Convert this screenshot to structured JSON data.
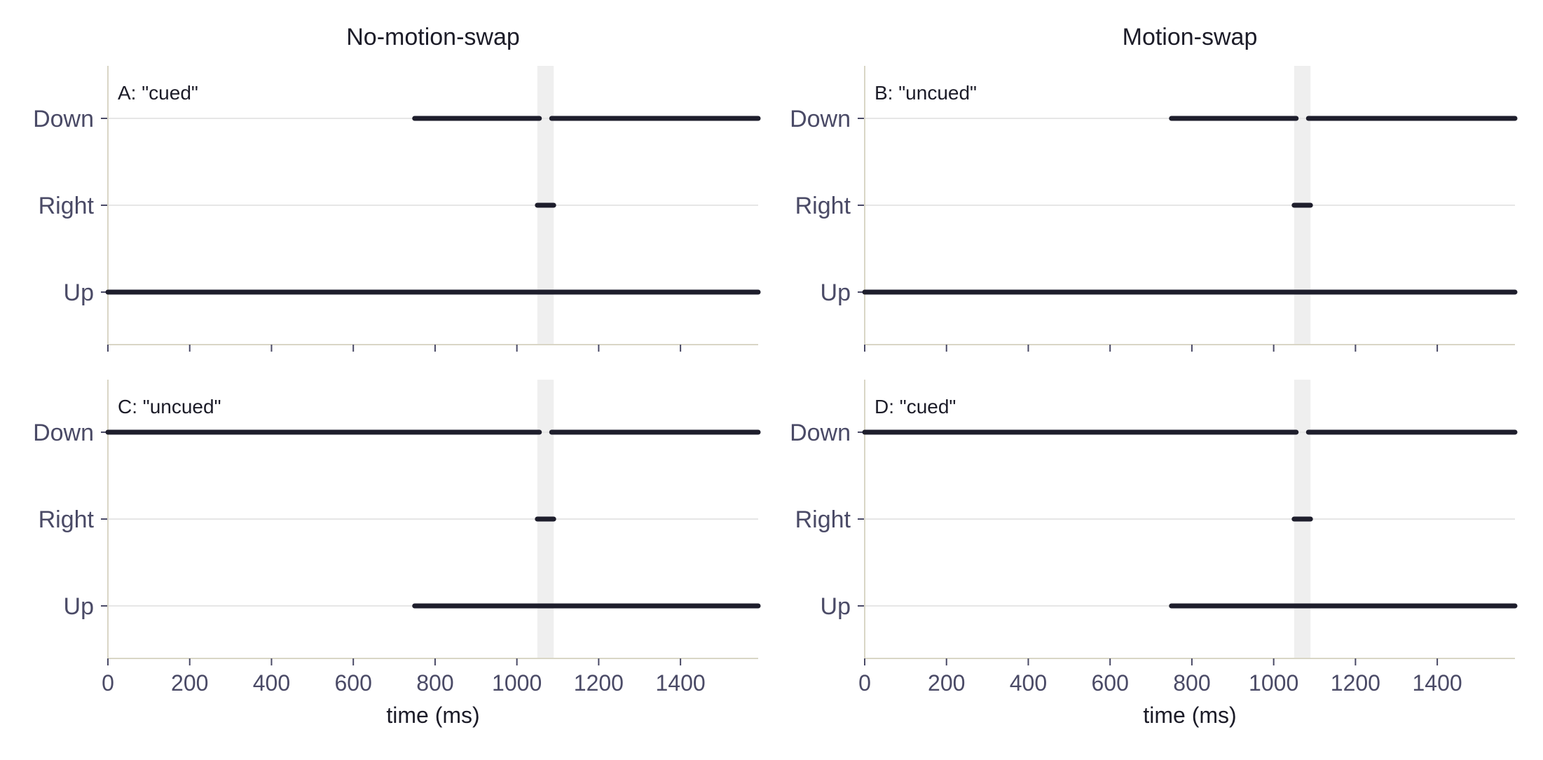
{
  "colors": {
    "event": "#1e1e2c",
    "gridline": "#e6e6e6",
    "shade": "#efefef",
    "axis_spine": "#d9d6c6",
    "tick": "#4a4a66"
  },
  "chart_data": {
    "type": "timeline",
    "xlabel": "time  (ms)",
    "xlim": [
      0,
      1590
    ],
    "xticks": [
      0,
      200,
      400,
      600,
      800,
      1000,
      1200,
      1400
    ],
    "yticks": [
      "Down",
      "Right",
      "Up"
    ],
    "shaded_interval": [
      1050,
      1090
    ],
    "grid": "horizontal",
    "columns": [
      "No-motion-swap",
      "Motion-swap"
    ],
    "panels": [
      {
        "label": "A: \"cued\"",
        "column": 0,
        "row": 0,
        "segments": [
          {
            "y": "Down",
            "start": 750,
            "end": 1055
          },
          {
            "y": "Down",
            "start": 1085,
            "end": 1590
          },
          {
            "y": "Right",
            "start": 1050,
            "end": 1090
          },
          {
            "y": "Up",
            "start": 0,
            "end": 1590
          }
        ]
      },
      {
        "label": "B: \"uncued\"",
        "column": 1,
        "row": 0,
        "segments": [
          {
            "y": "Down",
            "start": 750,
            "end": 1055
          },
          {
            "y": "Down",
            "start": 1085,
            "end": 1590
          },
          {
            "y": "Right",
            "start": 1050,
            "end": 1090
          },
          {
            "y": "Up",
            "start": 0,
            "end": 1590
          }
        ]
      },
      {
        "label": "C: \"uncued\"",
        "column": 0,
        "row": 1,
        "segments": [
          {
            "y": "Down",
            "start": 0,
            "end": 1055
          },
          {
            "y": "Down",
            "start": 1085,
            "end": 1590
          },
          {
            "y": "Right",
            "start": 1050,
            "end": 1090
          },
          {
            "y": "Up",
            "start": 750,
            "end": 1590
          }
        ]
      },
      {
        "label": "D: \"cued\"",
        "column": 1,
        "row": 1,
        "segments": [
          {
            "y": "Down",
            "start": 0,
            "end": 1055
          },
          {
            "y": "Down",
            "start": 1085,
            "end": 1590
          },
          {
            "y": "Right",
            "start": 1050,
            "end": 1090
          },
          {
            "y": "Up",
            "start": 750,
            "end": 1590
          }
        ]
      }
    ]
  }
}
